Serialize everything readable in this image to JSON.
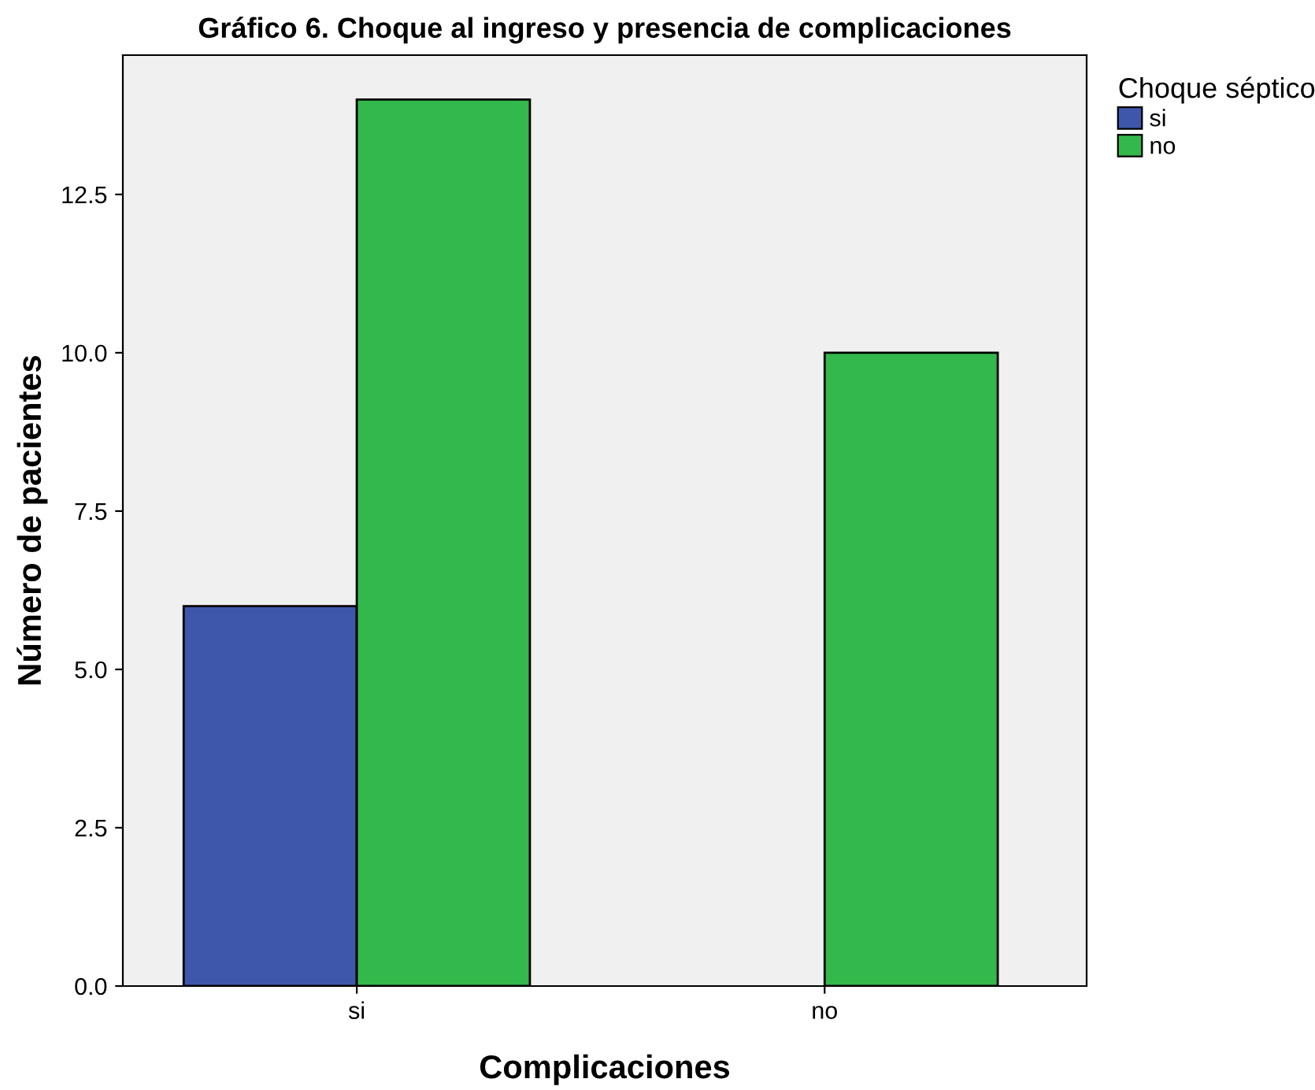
{
  "chart_data": {
    "type": "bar",
    "title": "Gráfico 6. Choque al ingreso y presencia de complicaciones",
    "xlabel": "Complicaciones",
    "ylabel": "Número de pacientes",
    "legend_title": "Choque séptico",
    "categories": [
      "si",
      "no"
    ],
    "series": [
      {
        "name": "si",
        "color": "#3f57ab",
        "values": [
          6,
          null
        ]
      },
      {
        "name": "no",
        "color": "#33b84b",
        "values": [
          14,
          10
        ]
      }
    ],
    "ylim": [
      0,
      14.7
    ],
    "yticks": [
      {
        "value": 0,
        "label": "0.0"
      },
      {
        "value": 2.5,
        "label": "2.5"
      },
      {
        "value": 5,
        "label": "5.0"
      },
      {
        "value": 7.5,
        "label": "7.5"
      },
      {
        "value": 10,
        "label": "10.0"
      },
      {
        "value": 12.5,
        "label": "12.5"
      }
    ],
    "grid": false,
    "legend": "top right"
  }
}
